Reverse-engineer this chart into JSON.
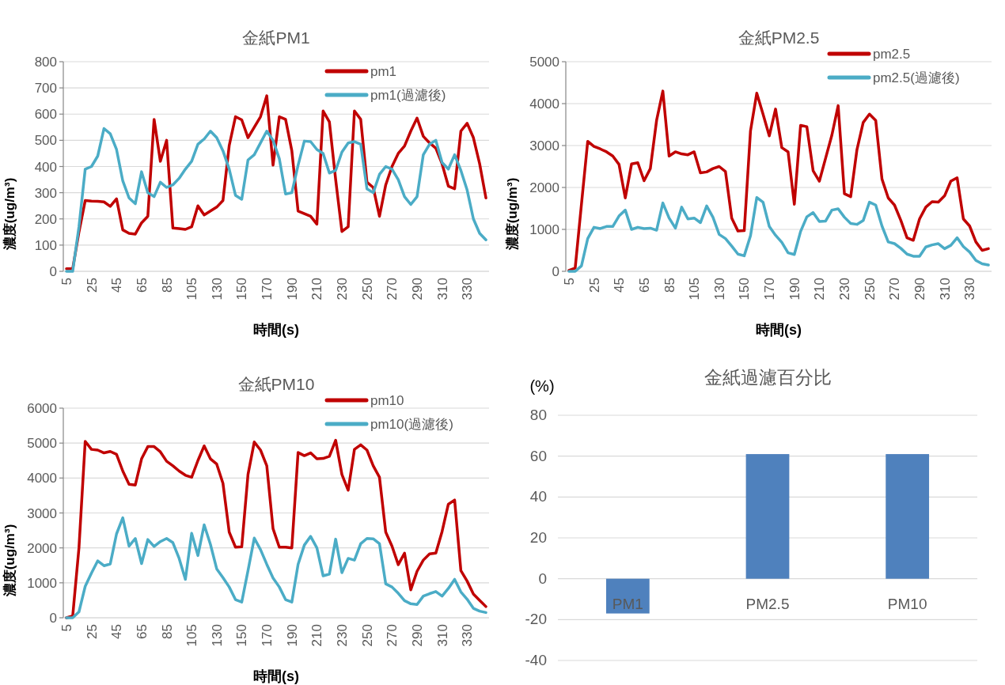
{
  "chart_data": [
    {
      "type": "line",
      "title": "金紙PM1",
      "xlabel": "時間(s)",
      "ylabel": "濃度(ug/m³)",
      "categories": [
        "5",
        null,
        null,
        null,
        "25",
        null,
        null,
        null,
        "45",
        null,
        null,
        null,
        "65",
        null,
        null,
        null,
        "85",
        null,
        null,
        null,
        "105",
        null,
        null,
        null,
        "130",
        null,
        null,
        null,
        "150",
        null,
        null,
        null,
        "170",
        null,
        null,
        null,
        "190",
        null,
        null,
        null,
        "210",
        null,
        null,
        null,
        "230",
        null,
        null,
        null,
        "250",
        null,
        null,
        null,
        "270",
        null,
        null,
        null,
        "290",
        null,
        null,
        null,
        "310",
        null,
        null,
        null,
        "330",
        null,
        null,
        null
      ],
      "series": [
        {
          "name": "pm1",
          "color": "#c00000",
          "values": [
            10,
            10,
            150,
            270,
            268,
            267,
            265,
            248,
            277,
            158,
            145,
            142,
            185,
            210,
            580,
            420,
            500,
            165,
            163,
            160,
            170,
            250,
            215,
            230,
            245,
            270,
            480,
            590,
            578,
            510,
            550,
            590,
            670,
            405,
            590,
            580,
            460,
            230,
            220,
            210,
            180,
            612,
            570,
            350,
            152,
            170,
            612,
            580,
            340,
            320,
            210,
            330,
            400,
            450,
            478,
            535,
            585,
            515,
            490,
            470,
            410,
            325,
            315,
            535,
            565,
            510,
            410,
            280
          ]
        },
        {
          "name": "pm1(過濾後)",
          "color": "#4bacc6",
          "values": [
            0,
            0,
            170,
            390,
            400,
            440,
            545,
            525,
            465,
            345,
            280,
            258,
            380,
            300,
            285,
            340,
            320,
            330,
            355,
            390,
            420,
            485,
            505,
            535,
            510,
            460,
            390,
            290,
            275,
            425,
            445,
            490,
            535,
            500,
            430,
            295,
            300,
            405,
            497,
            495,
            465,
            450,
            375,
            385,
            455,
            490,
            495,
            485,
            315,
            300,
            370,
            400,
            390,
            350,
            285,
            255,
            285,
            445,
            485,
            500,
            415,
            390,
            445,
            385,
            310,
            200,
            145,
            120
          ]
        }
      ],
      "ylim": [
        0,
        800
      ],
      "yticks": [
        0,
        100,
        200,
        300,
        400,
        500,
        600,
        700,
        800
      ],
      "grid": "y",
      "legend": "top right"
    },
    {
      "type": "line",
      "title": "金紙PM2.5",
      "xlabel": "時間(s)",
      "ylabel": "濃度(ug/m³)",
      "categories": [
        "5",
        null,
        null,
        null,
        "25",
        null,
        null,
        null,
        "45",
        null,
        null,
        null,
        "65",
        null,
        null,
        null,
        "85",
        null,
        null,
        null,
        "105",
        null,
        null,
        null,
        "130",
        null,
        null,
        null,
        "150",
        null,
        null,
        null,
        "170",
        null,
        null,
        null,
        "190",
        null,
        null,
        null,
        "210",
        null,
        null,
        null,
        "230",
        null,
        null,
        null,
        "250",
        null,
        null,
        null,
        "270",
        null,
        null,
        null,
        "290",
        null,
        null,
        null,
        "310",
        null,
        null,
        null,
        "330",
        null,
        null,
        null
      ],
      "series": [
        {
          "name": "pm2.5",
          "color": "#c00000",
          "values": [
            20,
            80,
            1600,
            3100,
            2980,
            2920,
            2850,
            2750,
            2550,
            1750,
            2560,
            2590,
            2160,
            2450,
            3600,
            4300,
            2750,
            2850,
            2800,
            2780,
            2850,
            2350,
            2370,
            2450,
            2500,
            2380,
            1270,
            960,
            970,
            3350,
            4250,
            3750,
            3230,
            3870,
            2950,
            2850,
            1600,
            3480,
            3450,
            2400,
            2150,
            2700,
            3250,
            3950,
            1850,
            1780,
            2900,
            3550,
            3750,
            3600,
            2200,
            1750,
            1580,
            1220,
            800,
            740,
            1250,
            1530,
            1660,
            1650,
            1800,
            2150,
            2230,
            1250,
            1080,
            700,
            500,
            540
          ]
        },
        {
          "name": "pm2.5(過濾後)",
          "color": "#4bacc6",
          "values": [
            0,
            0,
            130,
            780,
            1050,
            1020,
            1070,
            1070,
            1320,
            1460,
            1000,
            1050,
            1020,
            1030,
            980,
            1630,
            1270,
            1030,
            1530,
            1250,
            1270,
            1160,
            1560,
            1290,
            880,
            780,
            600,
            410,
            370,
            850,
            1760,
            1650,
            1070,
            860,
            690,
            440,
            400,
            950,
            1300,
            1400,
            1190,
            1200,
            1460,
            1490,
            1290,
            1140,
            1120,
            1210,
            1650,
            1580,
            1080,
            700,
            660,
            550,
            410,
            360,
            360,
            580,
            630,
            660,
            540,
            620,
            800,
            590,
            460,
            260,
            180,
            150
          ]
        }
      ],
      "ylim": [
        0,
        5000
      ],
      "yticks": [
        0,
        1000,
        2000,
        3000,
        4000,
        5000
      ],
      "grid": "y",
      "legend": "top right"
    },
    {
      "type": "line",
      "title": "金紙PM10",
      "xlabel": "時間(s)",
      "ylabel": "濃度(ug/m³)",
      "categories": [
        "5",
        null,
        null,
        null,
        "25",
        null,
        null,
        null,
        "45",
        null,
        null,
        null,
        "65",
        null,
        null,
        null,
        "85",
        null,
        null,
        null,
        "105",
        null,
        null,
        null,
        "130",
        null,
        null,
        null,
        "150",
        null,
        null,
        null,
        "170",
        null,
        null,
        null,
        "190",
        null,
        null,
        null,
        "210",
        null,
        null,
        null,
        "230",
        null,
        null,
        null,
        "250",
        null,
        null,
        null,
        "270",
        null,
        null,
        null,
        "290",
        null,
        null,
        null,
        "310",
        null,
        null,
        null,
        "330",
        null,
        null,
        null
      ],
      "series": [
        {
          "name": "pm10",
          "color": "#c00000",
          "values": [
            0,
            50,
            2000,
            5050,
            4820,
            4800,
            4720,
            4760,
            4680,
            4200,
            3820,
            3800,
            4550,
            4900,
            4900,
            4750,
            4480,
            4350,
            4200,
            4080,
            4020,
            4500,
            4920,
            4550,
            4400,
            3850,
            2450,
            2020,
            2030,
            4100,
            5030,
            4800,
            4350,
            2550,
            2020,
            2020,
            2000,
            4730,
            4640,
            4720,
            4550,
            4560,
            4620,
            5080,
            4100,
            3650,
            4820,
            4950,
            4800,
            4350,
            4020,
            2450,
            2050,
            1520,
            1850,
            800,
            1330,
            1650,
            1830,
            1850,
            2470,
            3250,
            3370,
            1350,
            1050,
            680,
            500,
            320
          ]
        },
        {
          "name": "pm10(過濾後)",
          "color": "#4bacc6",
          "values": [
            0,
            0,
            170,
            900,
            1280,
            1630,
            1490,
            1540,
            2400,
            2860,
            2050,
            2270,
            1550,
            2240,
            2040,
            2180,
            2270,
            2150,
            1700,
            1100,
            2420,
            1780,
            2660,
            2100,
            1400,
            1150,
            880,
            520,
            450,
            1350,
            2280,
            1950,
            1530,
            1140,
            880,
            520,
            450,
            1530,
            2080,
            2330,
            2000,
            1200,
            1250,
            2250,
            1290,
            1700,
            1650,
            2120,
            2270,
            2260,
            2120,
            970,
            880,
            700,
            490,
            400,
            380,
            620,
            690,
            750,
            620,
            840,
            1100,
            740,
            530,
            270,
            190,
            150
          ]
        }
      ],
      "ylim": [
        0,
        6000
      ],
      "yticks": [
        0,
        1000,
        2000,
        3000,
        4000,
        5000,
        6000
      ],
      "grid": "y",
      "legend": "top right"
    },
    {
      "type": "bar",
      "title": "金紙過濾百分比",
      "ylabel": "(%)",
      "categories": [
        "PM1",
        "PM2.5",
        "PM10"
      ],
      "values": [
        -17,
        61,
        61
      ],
      "color": "#4f81bd",
      "ylim": [
        -40,
        80
      ],
      "yticks": [
        -40,
        -20,
        0,
        20,
        40,
        60,
        80
      ],
      "grid": "y"
    }
  ]
}
